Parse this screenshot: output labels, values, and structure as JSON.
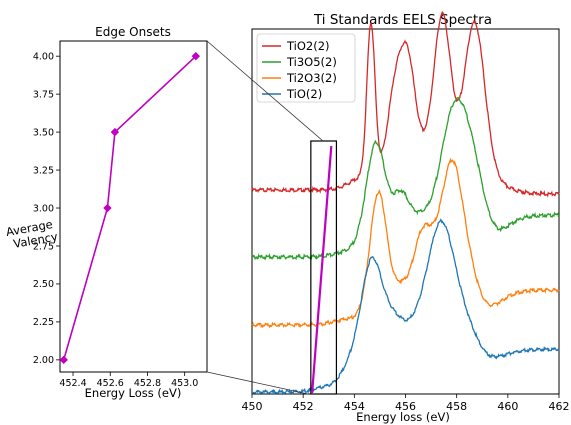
{
  "chart_data": [
    {
      "type": "line",
      "title": "Edge Onsets",
      "xlabel": "Energy Loss (eV)",
      "ylabel": "Average Valency",
      "xlim": [
        452.33,
        453.12
      ],
      "ylim": [
        1.92,
        4.1
      ],
      "x_ticks": [
        "452.4",
        "452.6",
        "452.8",
        "453.0"
      ],
      "y_ticks": [
        "2.00",
        "2.25",
        "2.50",
        "2.75",
        "3.00",
        "3.25",
        "3.50",
        "3.75",
        "4.00"
      ],
      "series": [
        {
          "color": "#c000c0",
          "marker": "diamond",
          "x": [
            452.35,
            452.585,
            452.625,
            453.06
          ],
          "y": [
            2.0,
            3.0,
            3.5,
            4.0
          ]
        }
      ]
    },
    {
      "type": "line",
      "title": "Ti Standards EELS Spectra",
      "xlabel": "Energy loss (eV)",
      "ylabel": "",
      "xlim": [
        450,
        462
      ],
      "x_ticks": [
        "450",
        "452",
        "454",
        "456",
        "458",
        "460",
        "462"
      ],
      "legend": "top-left",
      "grid": false,
      "series": [
        {
          "name": "TiO2(2)",
          "color": "#d62728",
          "offset": 3.0
        },
        {
          "name": "Ti3O5(2)",
          "color": "#2ca02c",
          "offset": 2.0
        },
        {
          "name": "Ti2O3(2)",
          "color": "#ff7f0e",
          "offset": 1.0
        },
        {
          "name": "TiO(2)",
          "color": "#1f77b4",
          "offset": 0.0
        }
      ],
      "annotations": [
        {
          "type": "zoom-box",
          "xrange": [
            452.3,
            453.3
          ]
        },
        {
          "type": "onset-line",
          "color": "#c000c0",
          "x": [
            452.35,
            453.1
          ]
        }
      ]
    }
  ]
}
